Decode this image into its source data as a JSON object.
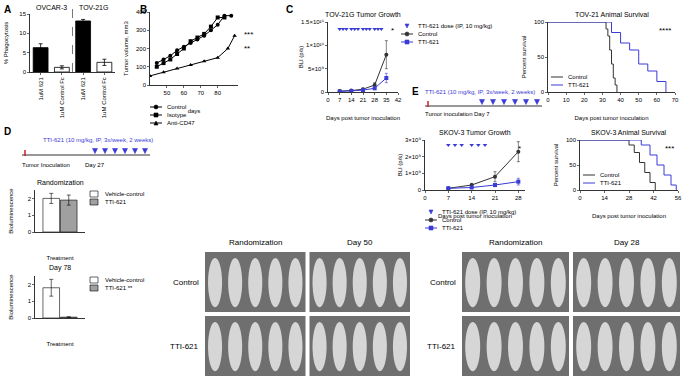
{
  "figure": {
    "panels": [
      "A",
      "B",
      "C",
      "D",
      "E"
    ],
    "schematics": [
      {
        "inoculation": "Tumor Inoculation",
        "treatment": "TTI-621 (10 mg/kg, IP, 3x/week, 2 weeks)",
        "start": "Day 27"
      },
      {
        "inoculation": "Tumor inoculation",
        "treatment": "TTI-621 (10 mg/kg, IP, 3x/week, 2 weeks)",
        "start": "Day 7"
      }
    ],
    "images": [
      {
        "columns": [
          "Randomization",
          "Day 50"
        ],
        "rows": [
          "Control",
          "TTI-621"
        ]
      },
      {
        "columns": [
          "Randomization",
          "Day 28"
        ],
        "rows": [
          "Control",
          "TTI-621"
        ]
      }
    ]
  },
  "chart_data": [
    {
      "type": "bar",
      "groups": [
        "OVCAR-3",
        "TOV-21G"
      ],
      "categories": [
        "1uM 621",
        "1uM Control Fc",
        "1uM 621",
        "1uM Control Fc"
      ],
      "values": [
        6.3,
        1.2,
        13.2,
        2.5
      ],
      "errors": [
        1.0,
        0.4,
        0.4,
        0.8
      ],
      "colors": [
        "#000000",
        "#ffffff",
        "#000000",
        "#ffffff"
      ],
      "ylabel": "% Phagocytosis",
      "ylim": [
        0,
        15
      ],
      "yticks": [
        0,
        5,
        10,
        15
      ]
    },
    {
      "type": "line",
      "xlabel": "days",
      "ylabel": "Tumor volume, mm3",
      "xlim": [
        40,
        92
      ],
      "xticks": [
        50,
        60,
        70,
        80
      ],
      "ylim": [
        0,
        400
      ],
      "yticks": [
        0,
        100,
        200,
        300,
        400
      ],
      "legend": "below",
      "annotations": [
        "***",
        "**"
      ],
      "series": [
        {
          "name": "Control",
          "color": "#000000",
          "marker": "circle",
          "x": [
            44,
            48,
            52,
            56,
            60,
            64,
            68,
            72,
            76,
            80,
            84,
            88
          ],
          "values": [
            120,
            140,
            160,
            190,
            210,
            230,
            250,
            270,
            300,
            330,
            380,
            380
          ]
        },
        {
          "name": "Isotype",
          "color": "#000000",
          "marker": "square",
          "x": [
            44,
            48,
            52,
            56,
            60,
            64,
            68,
            72,
            76,
            80,
            84
          ],
          "values": [
            100,
            120,
            140,
            170,
            200,
            240,
            260,
            280,
            320,
            370,
            370
          ]
        },
        {
          "name": "Anti-CD47",
          "color": "#000000",
          "marker": "triangle-up",
          "x": [
            40,
            48,
            56,
            64,
            72,
            80,
            86,
            90
          ],
          "values": [
            50,
            70,
            90,
            110,
            130,
            150,
            200,
            270
          ]
        }
      ]
    },
    {
      "type": "line",
      "title": "TOV-21G Tumor Growth",
      "xlabel": "Days post tumor inoculation",
      "ylabel": "BLI (p/s)",
      "xlim": [
        0,
        42
      ],
      "xticks": [
        0,
        7,
        14,
        21,
        28,
        35,
        42
      ],
      "ylim": [
        0,
        15000000000
      ],
      "yticks": [
        0,
        {
          "value": 5000000000,
          "label": "5×10⁹"
        },
        {
          "value": 10000000000,
          "label": "1×10¹⁰"
        },
        {
          "value": 15000000000,
          "label": "1.5×10¹⁰"
        }
      ],
      "legend": "right",
      "annotations": [
        "*"
      ],
      "series": [
        {
          "name": "TTI-621 dose (IP, 10 mg/kg)",
          "color": "#3b3bd6",
          "marker": "triangle-down",
          "line_style": "none",
          "x": [
            7,
            9,
            11,
            14,
            16,
            18,
            21,
            23,
            25,
            28,
            30,
            32
          ],
          "values": [
            13500000000,
            13500000000,
            13500000000,
            13500000000,
            13500000000,
            13500000000,
            13500000000,
            13500000000,
            13500000000,
            13500000000,
            13500000000,
            13500000000
          ]
        },
        {
          "name": "Control",
          "color": "#333333",
          "marker": "circle",
          "x": [
            7,
            14,
            21,
            28,
            35
          ],
          "values": [
            200000000,
            300000000,
            600000000,
            1500000000,
            8000000000
          ],
          "errors": [
            50000000,
            100000000,
            200000000,
            500000000,
            3000000000
          ]
        },
        {
          "name": "TTI-621",
          "color": "#3b3bd6",
          "marker": "square",
          "x": [
            7,
            14,
            21,
            28,
            35
          ],
          "values": [
            100000000,
            200000000,
            400000000,
            800000000,
            3000000000
          ],
          "errors": [
            30000000,
            50000000,
            100000000,
            300000000,
            1000000000
          ]
        }
      ]
    },
    {
      "type": "line",
      "title": "TOV-21 Animal Survival",
      "xlabel": "Days post tumor inoculation",
      "ylabel": "Percent survival",
      "xlim": [
        0,
        70
      ],
      "xticks": [
        0,
        10,
        20,
        30,
        40,
        50,
        60,
        70
      ],
      "ylim": [
        0,
        100
      ],
      "yticks": [
        0,
        50,
        100
      ],
      "legend": "lower left",
      "annotations": [
        "****"
      ],
      "series": [
        {
          "name": "Control",
          "color": "#333333",
          "line_style": "step",
          "x": [
            0,
            32,
            33,
            34,
            35,
            36,
            37,
            38
          ],
          "values": [
            100,
            90,
            80,
            60,
            40,
            20,
            10,
            0
          ]
        },
        {
          "name": "TTI-621",
          "color": "#3b3bd6",
          "line_style": "step",
          "x": [
            0,
            35,
            40,
            45,
            50,
            55,
            60,
            65
          ],
          "values": [
            100,
            85,
            70,
            60,
            40,
            30,
            15,
            0
          ]
        }
      ]
    },
    {
      "type": "bar",
      "title": "Randomization",
      "xlabel": "Treatment",
      "ylabel": "Bioluminescence",
      "categories": [
        null
      ],
      "ylim": [
        0,
        2.5
      ],
      "yticks": [
        0,
        1,
        2
      ],
      "legend": "right",
      "series": [
        {
          "name": "Vehicle-control",
          "color": "#ffffff",
          "values": [
            2.0
          ],
          "errors": [
            0.3
          ]
        },
        {
          "name": "TTI-621",
          "color": "#a0a0a0",
          "values": [
            1.9
          ],
          "errors": [
            0.3
          ]
        }
      ]
    },
    {
      "type": "bar",
      "title": "Day 78",
      "xlabel": "Treatment",
      "ylabel": "Bioluminescence",
      "categories": [
        null
      ],
      "ylim": [
        0,
        2.5
      ],
      "yticks": [
        0,
        1,
        2
      ],
      "legend": "right",
      "series": [
        {
          "name": "Vehicle-control",
          "color": "#ffffff",
          "values": [
            1.8
          ],
          "errors": [
            0.5
          ]
        },
        {
          "name": "TTI-621 **",
          "color": "#a0a0a0",
          "values": [
            0.05
          ],
          "errors": [
            0.03
          ]
        }
      ]
    },
    {
      "type": "line",
      "title": "SKOV-3 Tumor Growth",
      "xlabel": "Days post tumor inoculation",
      "ylabel": "BLI (p/s)",
      "xlim": [
        0,
        30
      ],
      "xticks": [
        0,
        7,
        14,
        21,
        28
      ],
      "ylim": [
        0,
        3000000000
      ],
      "yticks": [
        0,
        {
          "value": 1000000000,
          "label": "1×10⁹"
        },
        {
          "value": 2000000000,
          "label": "2×10⁹"
        },
        {
          "value": 3000000000,
          "label": "3×10⁹"
        }
      ],
      "legend": "below",
      "annotations": [
        "*"
      ],
      "series": [
        {
          "name": "TTI-621 dose (IP, 10 mg/kg)",
          "color": "#3b3bd6",
          "marker": "triangle-down",
          "line_style": "none",
          "x": [
            7,
            9,
            11,
            14,
            16,
            18
          ],
          "values": [
            2700000000,
            2700000000,
            2700000000,
            2700000000,
            2700000000,
            2700000000
          ]
        },
        {
          "name": "Control",
          "color": "#333333",
          "marker": "circle",
          "x": [
            7,
            14,
            21,
            28
          ],
          "values": [
            100000000,
            300000000,
            800000000,
            2300000000
          ],
          "errors": [
            30000000,
            100000000,
            300000000,
            600000000
          ]
        },
        {
          "name": "TTI-621",
          "color": "#3b3bd6",
          "marker": "square",
          "x": [
            7,
            14,
            21,
            28
          ],
          "values": [
            100000000,
            150000000,
            300000000,
            500000000
          ],
          "errors": [
            30000000,
            50000000,
            100000000,
            200000000
          ]
        }
      ]
    },
    {
      "type": "line",
      "title": "SKOV-3 Animal Survival",
      "xlabel": "Days post tumor inoculation",
      "ylabel": "Percent survival",
      "xlim": [
        0,
        56
      ],
      "xticks": [
        0,
        14,
        28,
        42,
        56
      ],
      "ylim": [
        0,
        100
      ],
      "yticks": [
        0,
        50,
        100
      ],
      "legend": "lower left",
      "annotations": [
        "***"
      ],
      "series": [
        {
          "name": "Control",
          "color": "#333333",
          "line_style": "step",
          "x": [
            0,
            28,
            31,
            34,
            37,
            40,
            43
          ],
          "values": [
            100,
            90,
            75,
            55,
            35,
            15,
            0
          ]
        },
        {
          "name": "TTI-621",
          "color": "#3b3bd6",
          "line_style": "step",
          "x": [
            0,
            35,
            40,
            44,
            48,
            52,
            55
          ],
          "values": [
            100,
            90,
            70,
            50,
            30,
            10,
            0
          ]
        }
      ]
    }
  ]
}
